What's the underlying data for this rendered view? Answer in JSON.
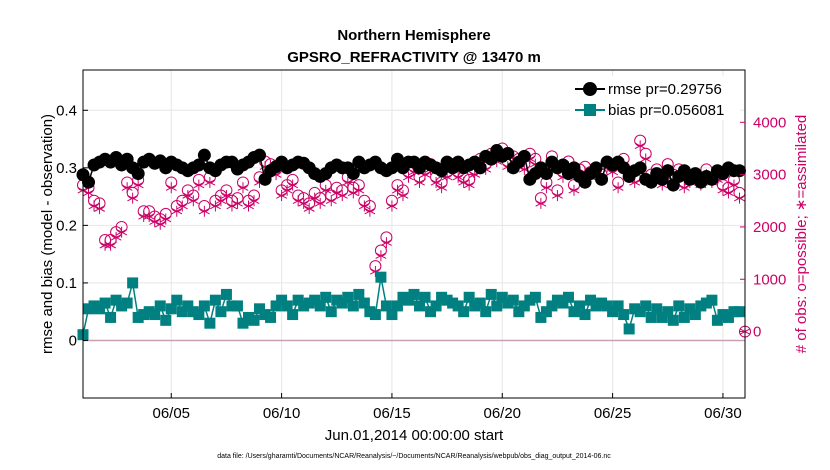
{
  "chart_data": {
    "type": "line",
    "title": "Northern Hemisphere",
    "subtitle": "GPSRO_REFRACTIVITY @ 13470 m",
    "xlabel": "Jun.01,2014 00:00:00 start",
    "ylabel_left": "rmse and bias (model - observation)",
    "ylabel_right": "# of obs: o=possible; ∗=assimilated",
    "footnote": "data file: /Users/gharamti/Documents/NCAR/Reanalysis/~/Documents/NCAR/Reanalysis/webpub/obs_diag_output_2014-06.nc",
    "xlim": [
      1,
      31
    ],
    "ylim_left": [
      -0.1,
      0.47
    ],
    "ylim_right": [
      -1270,
      5000
    ],
    "x_ticks": [
      5,
      10,
      15,
      20,
      25,
      30
    ],
    "x_tick_labels": [
      "06/05",
      "06/10",
      "06/15",
      "06/20",
      "06/25",
      "06/30"
    ],
    "y_left_ticks": [
      0,
      0.1,
      0.2,
      0.3,
      0.4
    ],
    "y_left_tick_labels": [
      "0",
      "0.1",
      "0.2",
      "0.3",
      "0.4"
    ],
    "y_right_ticks": [
      0,
      1000,
      2000,
      3000,
      4000
    ],
    "y_right_tick_labels": [
      "0",
      "1000",
      "2000",
      "3000",
      "4000"
    ],
    "grid": true,
    "legend_position": "top-right",
    "colors": {
      "rmse": "#000000",
      "bias": "#008080",
      "obs": "#cc0066",
      "zero_line": "#c8a0b4"
    },
    "x": [
      1.0,
      1.25,
      1.5,
      1.75,
      2.0,
      2.25,
      2.5,
      2.75,
      3.0,
      3.25,
      3.5,
      3.75,
      4.0,
      4.25,
      4.5,
      4.75,
      5.0,
      5.25,
      5.5,
      5.75,
      6.0,
      6.25,
      6.5,
      6.75,
      7.0,
      7.25,
      7.5,
      7.75,
      8.0,
      8.25,
      8.5,
      8.75,
      9.0,
      9.25,
      9.5,
      9.75,
      10.0,
      10.25,
      10.5,
      10.75,
      11.0,
      11.25,
      11.5,
      11.75,
      12.0,
      12.25,
      12.5,
      12.75,
      13.0,
      13.25,
      13.5,
      13.75,
      14.0,
      14.25,
      14.5,
      14.75,
      15.0,
      15.25,
      15.5,
      15.75,
      16.0,
      16.25,
      16.5,
      16.75,
      17.0,
      17.25,
      17.5,
      17.75,
      18.0,
      18.25,
      18.5,
      18.75,
      19.0,
      19.25,
      19.5,
      19.75,
      20.0,
      20.25,
      20.5,
      20.75,
      21.0,
      21.25,
      21.5,
      21.75,
      22.0,
      22.25,
      22.5,
      22.75,
      23.0,
      23.25,
      23.5,
      23.75,
      24.0,
      24.25,
      24.5,
      24.75,
      25.0,
      25.25,
      25.5,
      25.75,
      26.0,
      26.25,
      26.5,
      26.75,
      27.0,
      27.25,
      27.5,
      27.75,
      28.0,
      28.25,
      28.5,
      28.75,
      29.0,
      29.25,
      29.5,
      29.75,
      30.0,
      30.25,
      30.5,
      30.75
    ],
    "series": [
      {
        "name": "rmse",
        "legend_label": "rmse pr=0.29756",
        "marker": "filled-circle",
        "values": [
          0.288,
          0.275,
          0.305,
          0.31,
          0.315,
          0.31,
          0.318,
          0.305,
          0.315,
          0.3,
          0.29,
          0.31,
          0.315,
          0.308,
          0.312,
          0.3,
          0.31,
          0.305,
          0.3,
          0.295,
          0.3,
          0.305,
          0.322,
          0.3,
          0.295,
          0.305,
          0.31,
          0.31,
          0.298,
          0.305,
          0.31,
          0.318,
          0.322,
          0.28,
          0.295,
          0.302,
          0.31,
          0.3,
          0.305,
          0.31,
          0.308,
          0.3,
          0.29,
          0.285,
          0.29,
          0.3,
          0.305,
          0.3,
          0.3,
          0.29,
          0.31,
          0.3,
          0.305,
          0.31,
          0.3,
          0.295,
          0.3,
          0.315,
          0.3,
          0.31,
          0.31,
          0.3,
          0.31,
          0.305,
          0.3,
          0.295,
          0.31,
          0.3,
          0.31,
          0.3,
          0.305,
          0.31,
          0.3,
          0.32,
          0.315,
          0.33,
          0.32,
          0.325,
          0.3,
          0.31,
          0.32,
          0.28,
          0.29,
          0.3,
          0.29,
          0.31,
          0.3,
          0.305,
          0.29,
          0.3,
          0.285,
          0.275,
          0.29,
          0.3,
          0.28,
          0.31,
          0.305,
          0.31,
          0.3,
          0.285,
          0.295,
          0.3,
          0.28,
          0.275,
          0.29,
          0.28,
          0.295,
          0.27,
          0.285,
          0.295,
          0.28,
          0.29,
          0.275,
          0.285,
          0.28,
          0.295,
          0.29,
          0.3,
          0.295,
          0.295
        ]
      },
      {
        "name": "bias",
        "legend_label": "bias pr=0.056081",
        "marker": "filled-square",
        "values": [
          0.01,
          0.055,
          0.06,
          0.055,
          0.065,
          0.04,
          0.07,
          0.06,
          0.065,
          0.1,
          0.04,
          0.045,
          0.05,
          0.045,
          0.06,
          0.035,
          0.055,
          0.07,
          0.05,
          0.06,
          0.05,
          0.045,
          0.06,
          0.03,
          0.07,
          0.05,
          0.08,
          0.06,
          0.06,
          0.03,
          0.04,
          0.035,
          0.055,
          0.045,
          0.04,
          0.06,
          0.07,
          0.06,
          0.045,
          0.07,
          0.06,
          0.065,
          0.07,
          0.06,
          0.075,
          0.05,
          0.07,
          0.065,
          0.075,
          0.06,
          0.08,
          0.065,
          0.05,
          0.045,
          0.11,
          0.06,
          0.045,
          0.06,
          0.075,
          0.07,
          0.08,
          0.06,
          0.075,
          0.05,
          0.06,
          0.075,
          0.07,
          0.065,
          0.06,
          0.05,
          0.075,
          0.06,
          0.065,
          0.05,
          0.08,
          0.06,
          0.075,
          0.065,
          0.07,
          0.05,
          0.06,
          0.07,
          0.075,
          0.04,
          0.05,
          0.06,
          0.07,
          0.065,
          0.075,
          0.05,
          0.06,
          0.045,
          0.07,
          0.06,
          0.065,
          0.06,
          0.05,
          0.06,
          0.045,
          0.02,
          0.055,
          0.05,
          0.06,
          0.04,
          0.055,
          0.04,
          0.05,
          0.035,
          0.06,
          0.04,
          0.055,
          0.045,
          0.06,
          0.065,
          0.07,
          0.035,
          0.045,
          0.04,
          0.05,
          0.05
        ]
      },
      {
        "name": "obs_possible",
        "legend_label": "",
        "marker": "open-circle",
        "axis": "right",
        "values": [
          2800,
          2750,
          2500,
          2450,
          1750,
          1750,
          1900,
          2000,
          2850,
          2650,
          2900,
          2300,
          2300,
          2200,
          2150,
          2250,
          2850,
          2400,
          2500,
          2700,
          2600,
          2900,
          2400,
          2950,
          2500,
          2600,
          2700,
          2500,
          2550,
          2850,
          2500,
          2600,
          2950,
          3250,
          3200,
          3100,
          2700,
          2800,
          2900,
          2600,
          2550,
          2450,
          2650,
          2550,
          2800,
          2600,
          2750,
          2700,
          2950,
          2750,
          2800,
          2500,
          2400,
          1250,
          1550,
          1800,
          2500,
          2800,
          2700,
          3050,
          3150,
          2950,
          3100,
          3200,
          2950,
          2850,
          3050,
          3200,
          3050,
          2950,
          2900,
          3100,
          3300,
          3200,
          3400,
          3350,
          3500,
          3250,
          3350,
          3300,
          3200,
          3400,
          3300,
          2550,
          2850,
          3350,
          2700,
          3050,
          3250,
          2800,
          3100,
          3150,
          3050,
          3100,
          3000,
          3250,
          3150,
          2850,
          3300,
          3050,
          2950,
          3650,
          3400,
          3000,
          3100,
          2900,
          3200,
          3000,
          3100,
          2850,
          2950,
          3000,
          2900,
          3100,
          2950,
          3000,
          2800,
          2750,
          2900,
          2650
        ]
      },
      {
        "name": "obs_assimilated",
        "legend_label": "",
        "marker": "asterisk",
        "axis": "right",
        "values": [
          2700,
          2650,
          2400,
          2350,
          1650,
          1650,
          1800,
          1900,
          2750,
          2550,
          2800,
          2200,
          2200,
          2100,
          2050,
          2150,
          2750,
          2300,
          2400,
          2600,
          2500,
          2800,
          2300,
          2850,
          2400,
          2500,
          2600,
          2400,
          2450,
          2750,
          2400,
          2500,
          2850,
          3150,
          3100,
          3000,
          2600,
          2700,
          2800,
          2500,
          2450,
          2350,
          2550,
          2450,
          2700,
          2500,
          2650,
          2600,
          2850,
          2650,
          2700,
          2400,
          2300,
          1150,
          1450,
          1700,
          2400,
          2700,
          2600,
          2950,
          3050,
          2850,
          3000,
          3100,
          2850,
          2750,
          2950,
          3100,
          2950,
          2850,
          2800,
          3000,
          3200,
          3100,
          3300,
          3250,
          3400,
          3150,
          3250,
          3200,
          3100,
          3300,
          3200,
          2450,
          2750,
          3250,
          2600,
          2950,
          3150,
          2700,
          3000,
          3050,
          2950,
          3000,
          2900,
          3150,
          3050,
          2750,
          3200,
          2950,
          2850,
          3550,
          3300,
          2900,
          3000,
          2800,
          3100,
          2900,
          3000,
          2750,
          2850,
          2900,
          2800,
          3000,
          2850,
          2900,
          2700,
          2650,
          2800,
          2550
        ]
      }
    ],
    "extra_points": [
      {
        "series": "obs_possible",
        "x": 31,
        "value": 0
      },
      {
        "series": "obs_assimilated",
        "x": 31,
        "value": 0
      }
    ]
  }
}
